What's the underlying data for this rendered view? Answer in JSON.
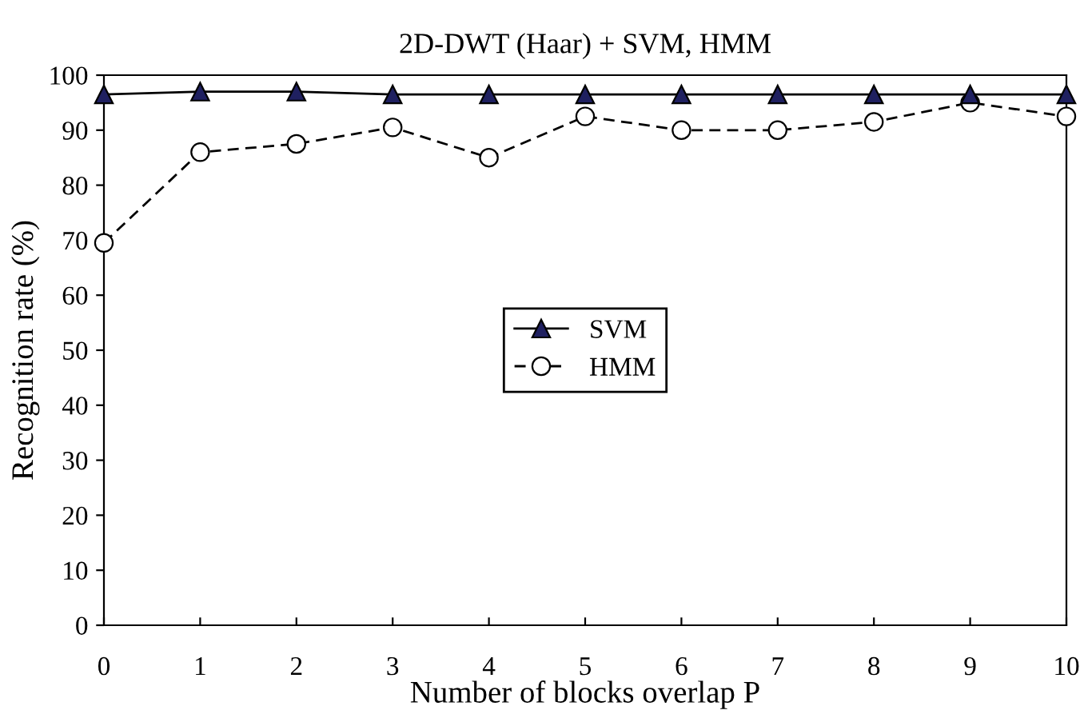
{
  "chart_data": {
    "type": "line",
    "title": "2D-DWT (Haar) + SVM, HMM",
    "xlabel": "Number of blocks overlap P",
    "ylabel": "Recognition rate (%)",
    "x": [
      0,
      1,
      2,
      3,
      4,
      5,
      6,
      7,
      8,
      9,
      10
    ],
    "series": [
      {
        "name": "SVM",
        "color": "#1f2060",
        "marker": "triangle",
        "line_style": "solid",
        "values": [
          96.5,
          97,
          97,
          96.5,
          96.5,
          96.5,
          96.5,
          96.5,
          96.5,
          96.5,
          96.5
        ]
      },
      {
        "name": "HMM",
        "color": "#ffffff",
        "marker": "circle",
        "line_style": "dashed",
        "values": [
          69.5,
          86,
          87.5,
          90.5,
          85,
          92.5,
          90,
          90,
          91.5,
          95,
          92.5
        ]
      }
    ],
    "xlim": [
      0,
      10
    ],
    "xticks": [
      0,
      1,
      2,
      3,
      4,
      5,
      6,
      7,
      8,
      9,
      10
    ],
    "ylim": [
      0,
      100
    ],
    "yticks": [
      0,
      10,
      20,
      30,
      40,
      50,
      60,
      70,
      80,
      90,
      100
    ],
    "grid": false,
    "legend": "center"
  }
}
